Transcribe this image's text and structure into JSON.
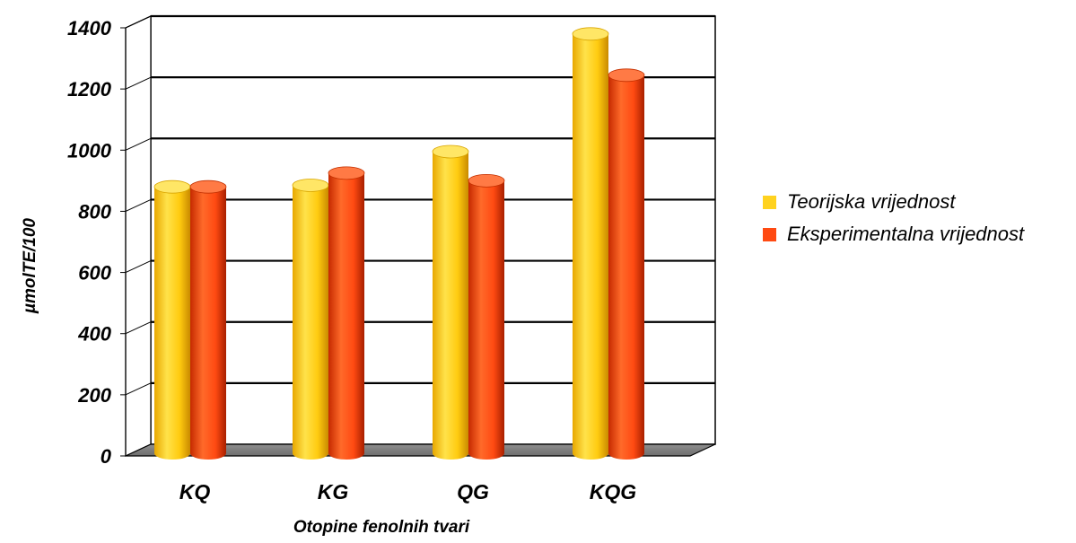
{
  "chart_data": {
    "type": "bar",
    "title": "",
    "xlabel": "Otopine fenolnih tvari",
    "ylabel": "µmolTE/100",
    "categories": [
      "KQ",
      "KG",
      "QG",
      "KQG"
    ],
    "ylim": [
      0,
      1400
    ],
    "yticks": [
      0,
      200,
      400,
      600,
      800,
      1000,
      1200,
      1400
    ],
    "grid": true,
    "legend_position": "right",
    "series": [
      {
        "name": "Teorijska vrijednost",
        "color": "#FFD21F",
        "values": [
          880,
          885,
          995,
          1380
        ]
      },
      {
        "name": "Eksperimentalna vrijednost",
        "color": "#FF4A12",
        "values": [
          880,
          925,
          900,
          1245
        ]
      }
    ]
  }
}
